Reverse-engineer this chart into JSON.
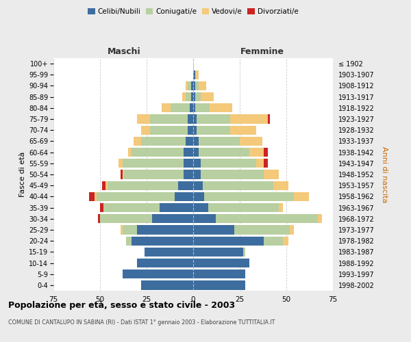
{
  "age_groups": [
    "0-4",
    "5-9",
    "10-14",
    "15-19",
    "20-24",
    "25-29",
    "30-34",
    "35-39",
    "40-44",
    "45-49",
    "50-54",
    "55-59",
    "60-64",
    "65-69",
    "70-74",
    "75-79",
    "80-84",
    "85-89",
    "90-94",
    "95-99",
    "100+"
  ],
  "birth_years": [
    "1998-2002",
    "1993-1997",
    "1988-1992",
    "1983-1987",
    "1978-1982",
    "1973-1977",
    "1968-1972",
    "1963-1967",
    "1958-1962",
    "1953-1957",
    "1948-1952",
    "1943-1947",
    "1938-1942",
    "1933-1937",
    "1928-1932",
    "1923-1927",
    "1918-1922",
    "1913-1917",
    "1908-1912",
    "1903-1907",
    "≤ 1902"
  ],
  "males_celibe": [
    28,
    38,
    30,
    26,
    33,
    30,
    22,
    18,
    10,
    8,
    5,
    5,
    5,
    4,
    3,
    3,
    2,
    1,
    1,
    0,
    0
  ],
  "males_coniugato": [
    0,
    0,
    0,
    0,
    3,
    8,
    28,
    30,
    42,
    38,
    32,
    33,
    28,
    24,
    20,
    20,
    10,
    3,
    2,
    0,
    0
  ],
  "males_vedovo": [
    0,
    0,
    0,
    0,
    0,
    1,
    0,
    0,
    1,
    1,
    1,
    2,
    2,
    4,
    5,
    7,
    5,
    2,
    1,
    0,
    0
  ],
  "males_divorziato": [
    0,
    0,
    0,
    0,
    0,
    0,
    1,
    2,
    3,
    2,
    1,
    0,
    0,
    0,
    0,
    0,
    0,
    0,
    0,
    0,
    0
  ],
  "females_nubile": [
    28,
    28,
    30,
    27,
    38,
    22,
    12,
    8,
    6,
    5,
    4,
    4,
    3,
    3,
    2,
    2,
    1,
    1,
    1,
    1,
    0
  ],
  "females_coniugata": [
    0,
    0,
    0,
    1,
    10,
    30,
    55,
    38,
    48,
    38,
    34,
    30,
    27,
    22,
    18,
    18,
    8,
    3,
    2,
    0,
    0
  ],
  "females_vedova": [
    0,
    0,
    0,
    0,
    3,
    2,
    2,
    2,
    8,
    8,
    8,
    4,
    8,
    12,
    14,
    20,
    12,
    7,
    4,
    2,
    0
  ],
  "females_divorziata": [
    0,
    0,
    0,
    0,
    0,
    0,
    0,
    0,
    0,
    0,
    0,
    2,
    2,
    0,
    0,
    1,
    0,
    0,
    0,
    0,
    0
  ],
  "color_celibe": "#3d6d9e",
  "color_coniugato": "#b8cfa1",
  "color_vedovo": "#f4c97a",
  "color_divorziato": "#cc2222",
  "xlim": 75,
  "title": "Popolazione per età, sesso e stato civile - 2003",
  "subtitle": "COMUNE DI CANTALUPO IN SABINA (RI) - Dati ISTAT 1° gennaio 2003 - Elaborazione TUTTITALIA.IT",
  "ylabel_left": "Fasce di età",
  "ylabel_right": "Anni di nascita",
  "label_maschi": "Maschi",
  "label_femmine": "Femmine",
  "legend_labels": [
    "Celibi/Nubili",
    "Coniugati/e",
    "Vedovi/e",
    "Divorziati/e"
  ],
  "bg_color": "#ebebeb",
  "plot_bg_color": "#ffffff"
}
